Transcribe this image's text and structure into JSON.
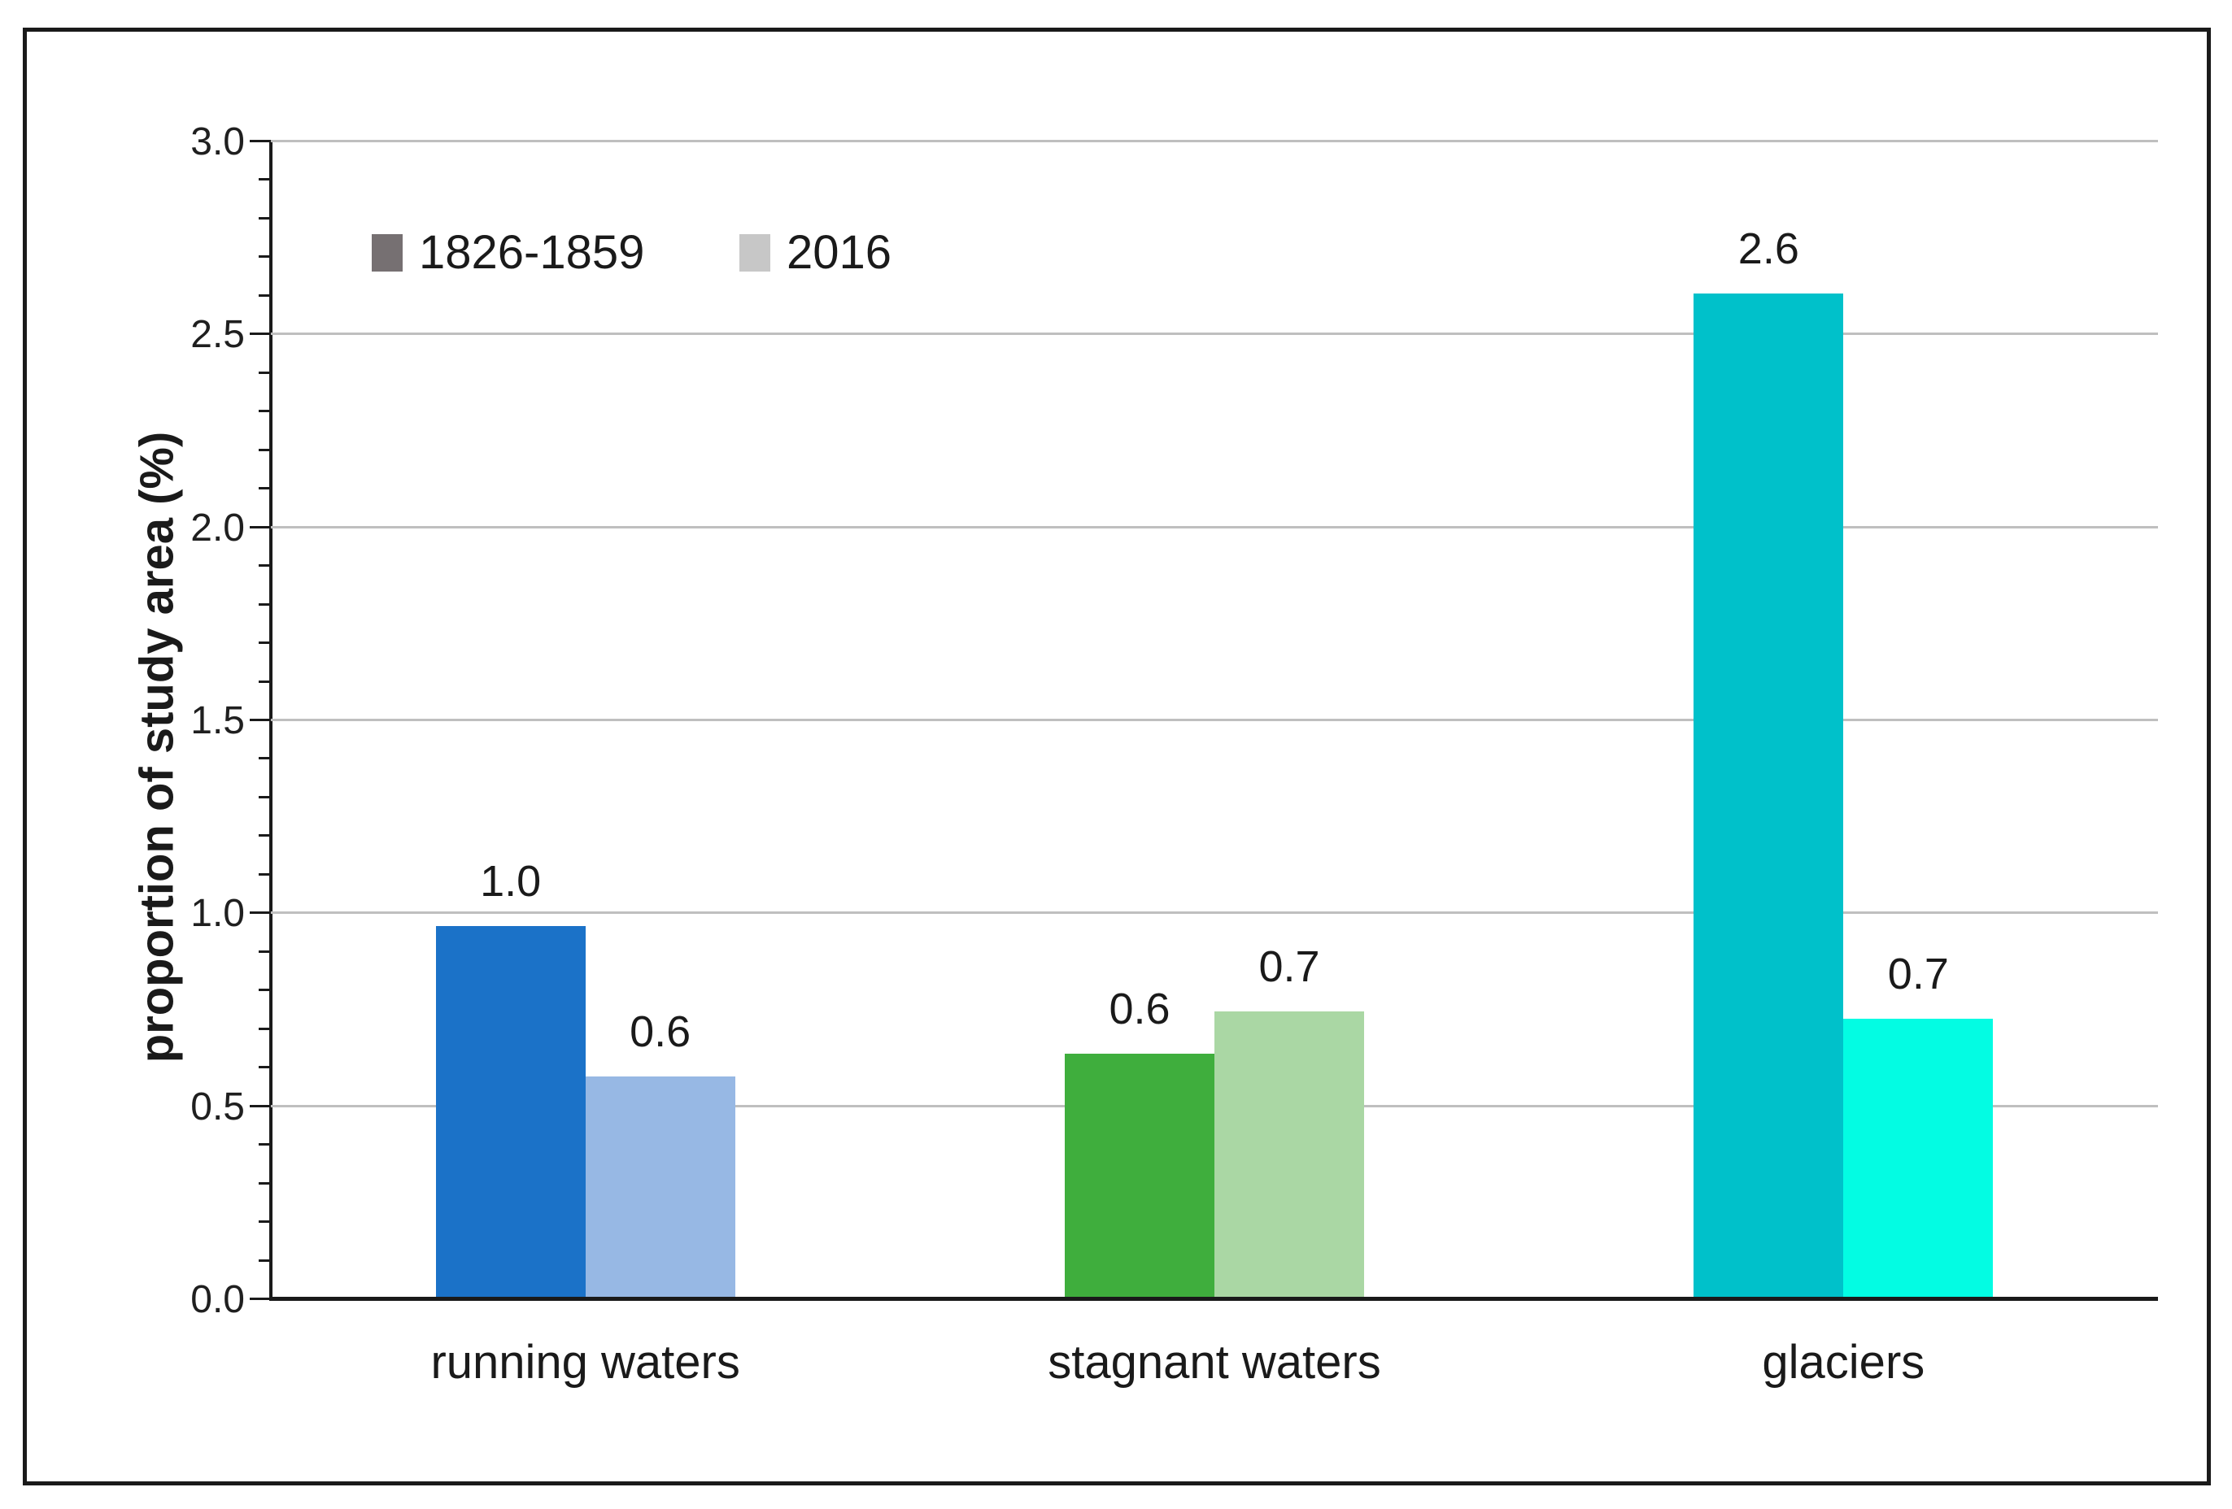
{
  "figure": {
    "background_color": "#ffffff",
    "border_color": "#1a1a1a"
  },
  "legend": {
    "position": "top-left",
    "items": [
      {
        "label": "1826-1859",
        "color": "#767072"
      },
      {
        "label": "2016",
        "color": "#c7c7c7"
      }
    ]
  },
  "y_axis": {
    "title": "proportion of study area (%)",
    "tick_labels": [
      "3.0",
      "2.5",
      "2.0",
      "1.5",
      "1.0",
      "0.5",
      "0.0"
    ],
    "min": 0.0,
    "max": 3.0,
    "major_step": 0.5,
    "minor_step": 0.1
  },
  "chart_data": {
    "type": "bar",
    "title": "",
    "categories": [
      "running waters",
      "stagnant waters",
      "glaciers"
    ],
    "series": [
      {
        "name": "1826-1859",
        "legend_color": "#767072",
        "values": [
          1.0,
          0.6,
          2.6
        ],
        "data_labels": [
          "1.0",
          "0.6",
          "2.6"
        ],
        "plotted_values": [
          0.96,
          0.63,
          2.6
        ],
        "colors": [
          "#1b72c8",
          "#3fae3d",
          "#00c1ca"
        ]
      },
      {
        "name": "2016",
        "legend_color": "#c7c7c7",
        "values": [
          0.6,
          0.7,
          0.7
        ],
        "data_labels": [
          "0.6",
          "0.7",
          "0.7"
        ],
        "plotted_values": [
          0.57,
          0.74,
          0.72
        ],
        "colors": [
          "#97b8e4",
          "#aad7a4",
          "#03fce3"
        ]
      }
    ],
    "xlabel": "",
    "ylabel": "proportion of study area (%)",
    "ylim": [
      0,
      3.0
    ],
    "grid": true,
    "gridline_color": "#bfbfbf",
    "legend_position": "top-left"
  }
}
